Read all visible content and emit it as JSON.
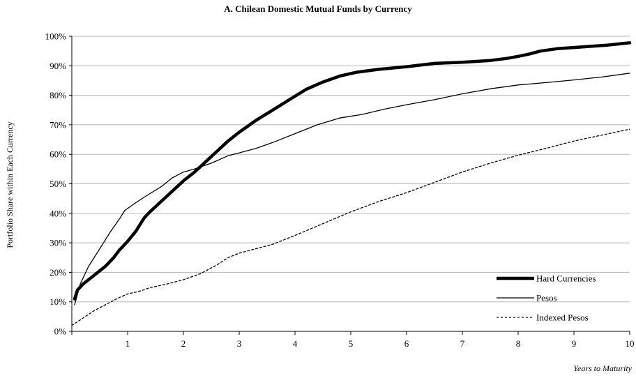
{
  "chart_data": {
    "type": "line",
    "title": "A. Chilean Domestic Mutual Funds by Currency",
    "xlabel": "Years to Maturity",
    "ylabel": "Portfolio Share within Each Currency",
    "xlim": [
      0,
      10
    ],
    "ylim": [
      0,
      100
    ],
    "x_ticks": [
      1,
      2,
      3,
      4,
      5,
      6,
      7,
      8,
      9,
      10
    ],
    "y_ticks": [
      "0%",
      "10%",
      "20%",
      "30%",
      "40%",
      "50%",
      "60%",
      "70%",
      "80%",
      "90%",
      "100%"
    ],
    "grid": "horizontal",
    "legend_position": "bottom-right",
    "series": [
      {
        "name": "Hard Currencies",
        "style": "thick-solid",
        "points": [
          [
            0.05,
            11
          ],
          [
            0.1,
            14
          ],
          [
            0.2,
            16
          ],
          [
            0.4,
            19
          ],
          [
            0.6,
            22
          ],
          [
            0.75,
            25
          ],
          [
            0.85,
            27.5
          ],
          [
            1,
            30.5
          ],
          [
            1.15,
            34
          ],
          [
            1.3,
            38.5
          ],
          [
            1.4,
            40.5
          ],
          [
            1.6,
            44
          ],
          [
            1.8,
            47.5
          ],
          [
            2,
            51
          ],
          [
            2.2,
            54
          ],
          [
            2.4,
            57.5
          ],
          [
            2.6,
            61
          ],
          [
            2.8,
            64.5
          ],
          [
            3,
            67.5
          ],
          [
            3.3,
            71.5
          ],
          [
            3.6,
            75
          ],
          [
            3.9,
            78.5
          ],
          [
            4.2,
            82
          ],
          [
            4.5,
            84.5
          ],
          [
            4.8,
            86.5
          ],
          [
            5.1,
            87.8
          ],
          [
            5.5,
            88.8
          ],
          [
            6,
            89.7
          ],
          [
            6.5,
            90.8
          ],
          [
            7,
            91.2
          ],
          [
            7.5,
            91.8
          ],
          [
            7.8,
            92.5
          ],
          [
            8,
            93.2
          ],
          [
            8.2,
            94
          ],
          [
            8.4,
            95
          ],
          [
            8.7,
            95.8
          ],
          [
            9,
            96.2
          ],
          [
            9.3,
            96.6
          ],
          [
            9.6,
            97
          ],
          [
            9.8,
            97.4
          ],
          [
            10,
            97.8
          ]
        ]
      },
      {
        "name": "Pesos",
        "style": "thin-solid",
        "points": [
          [
            0.05,
            9
          ],
          [
            0.15,
            16
          ],
          [
            0.3,
            22
          ],
          [
            0.5,
            28
          ],
          [
            0.7,
            34
          ],
          [
            0.85,
            38
          ],
          [
            0.95,
            41
          ],
          [
            1.1,
            43
          ],
          [
            1.3,
            45.5
          ],
          [
            1.6,
            49
          ],
          [
            1.8,
            52
          ],
          [
            2,
            54
          ],
          [
            2.2,
            55
          ],
          [
            2.5,
            57
          ],
          [
            2.8,
            59.5
          ],
          [
            3,
            60.5
          ],
          [
            3.3,
            62
          ],
          [
            3.6,
            64
          ],
          [
            4,
            67
          ],
          [
            4.4,
            70
          ],
          [
            4.8,
            72.3
          ],
          [
            5.2,
            73.5
          ],
          [
            5.6,
            75.3
          ],
          [
            6,
            76.8
          ],
          [
            6.5,
            78.5
          ],
          [
            7,
            80.5
          ],
          [
            7.5,
            82.2
          ],
          [
            8,
            83.5
          ],
          [
            8.5,
            84.3
          ],
          [
            9,
            85.2
          ],
          [
            9.5,
            86.2
          ],
          [
            10,
            87.5
          ]
        ]
      },
      {
        "name": "Indexed Pesos",
        "style": "dashed",
        "points": [
          [
            0,
            2
          ],
          [
            0.2,
            4.5
          ],
          [
            0.4,
            7
          ],
          [
            0.6,
            9
          ],
          [
            0.8,
            11
          ],
          [
            1,
            12.7
          ],
          [
            1.2,
            13.5
          ],
          [
            1.4,
            14.8
          ],
          [
            1.7,
            16
          ],
          [
            2,
            17.5
          ],
          [
            2.3,
            19.5
          ],
          [
            2.6,
            22.5
          ],
          [
            2.8,
            25
          ],
          [
            3,
            26.5
          ],
          [
            3.3,
            28
          ],
          [
            3.6,
            29.5
          ],
          [
            4,
            32.5
          ],
          [
            4.5,
            36.5
          ],
          [
            5,
            40.5
          ],
          [
            5.5,
            44
          ],
          [
            6,
            47
          ],
          [
            6.5,
            50.5
          ],
          [
            7,
            54
          ],
          [
            7.5,
            57
          ],
          [
            8,
            59.7
          ],
          [
            8.5,
            62
          ],
          [
            9,
            64.5
          ],
          [
            9.5,
            66.5
          ],
          [
            10,
            68.5
          ]
        ]
      }
    ]
  }
}
